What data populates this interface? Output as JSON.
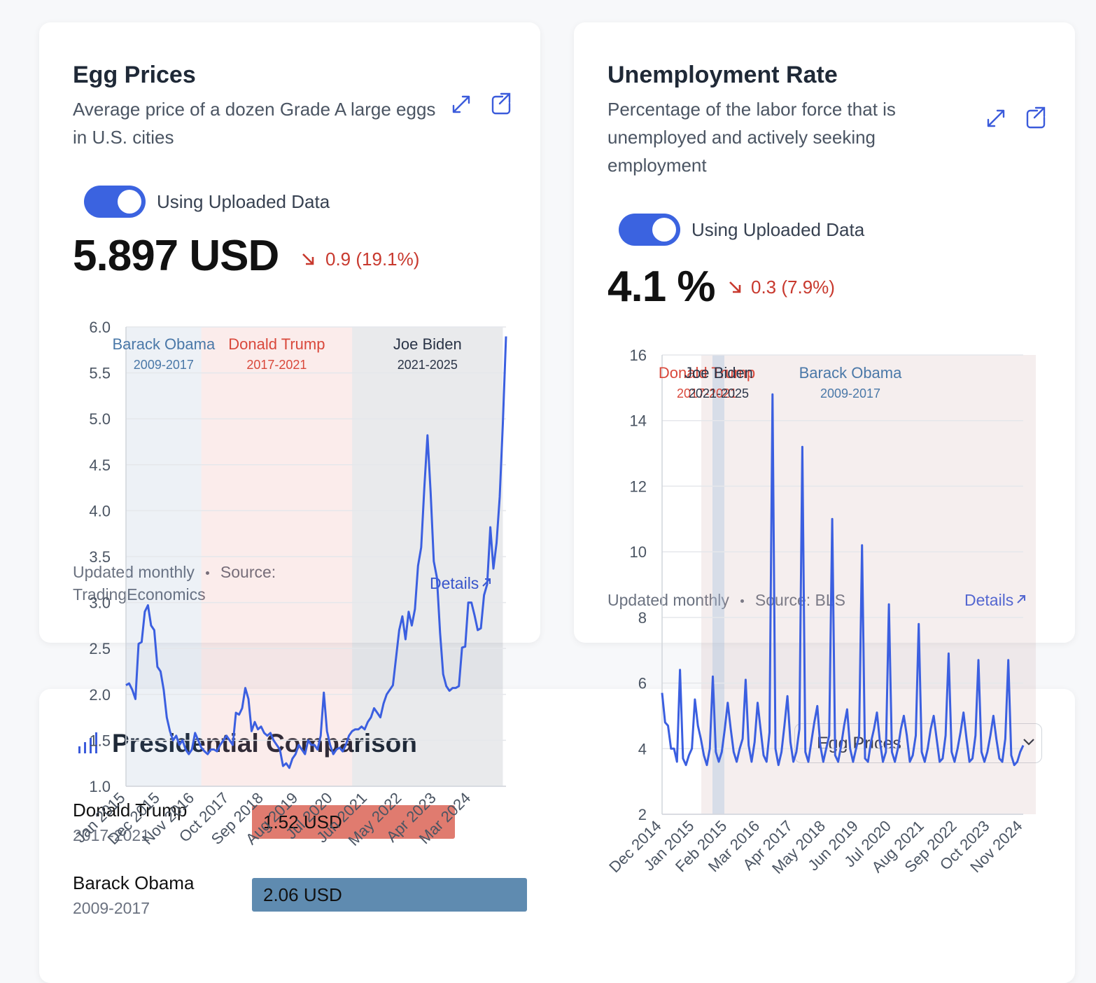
{
  "cards": [
    {
      "title": "Egg Prices",
      "description": "Average price of a dozen Grade A large eggs in U.S. cities",
      "toggle": "Using Uploaded Data",
      "current": "5.897 USD",
      "change": "0.9 (19.1%)",
      "updated": "Updated monthly",
      "source": "Source: TradingEconomics",
      "details": "Details"
    },
    {
      "title": "Unemployment Rate",
      "description": "Percentage of the labor force that is unemployed and actively seeking employment",
      "toggle": "Using Uploaded Data",
      "current": "4.1 %",
      "change": "0.3 (7.9%)",
      "updated": "Updated monthly",
      "source": "Source: BLS",
      "details": "Details"
    }
  ],
  "comparison": {
    "title": "Presidential Comparison",
    "selected": "Egg Prices"
  },
  "chart_data": [
    {
      "type": "line",
      "categories": [
        "Jan 2015",
        null,
        null,
        null,
        null,
        null,
        null,
        null,
        null,
        null,
        null,
        "Dec 2015",
        null,
        null,
        null,
        null,
        null,
        null,
        null,
        null,
        null,
        null,
        "Nov 2016",
        null,
        null,
        null,
        null,
        null,
        null,
        null,
        null,
        null,
        null,
        "Oct 2017",
        null,
        null,
        null,
        null,
        null,
        null,
        null,
        null,
        null,
        null,
        "Sep 2018",
        null,
        null,
        null,
        null,
        null,
        null,
        null,
        null,
        null,
        null,
        "Aug 2019",
        null,
        null,
        null,
        null,
        null,
        null,
        null,
        null,
        null,
        null,
        "Jul 2020",
        null,
        null,
        null,
        null,
        null,
        null,
        null,
        null,
        null,
        null,
        "Jun 2021",
        null,
        null,
        null,
        null,
        null,
        null,
        null,
        null,
        null,
        null,
        "May 2022",
        null,
        null,
        null,
        null,
        null,
        null,
        null,
        null,
        null,
        null,
        "Apr 2023",
        null,
        null,
        null,
        null,
        null,
        null,
        null,
        null,
        null,
        null,
        "Mar 2024",
        null,
        null,
        null,
        null,
        null,
        null,
        null,
        null,
        null,
        null,
        null
      ],
      "series": [
        {
          "color": "#3b5fe0",
          "values": [
            2.1,
            2.12,
            2.05,
            1.95,
            2.55,
            2.57,
            2.9,
            2.97,
            2.75,
            2.7,
            2.3,
            2.25,
            2.05,
            1.75,
            1.6,
            1.5,
            1.55,
            1.45,
            1.5,
            1.4,
            1.35,
            1.4,
            1.58,
            1.5,
            1.42,
            1.38,
            1.35,
            1.4,
            1.4,
            1.38,
            1.45,
            1.5,
            1.55,
            1.5,
            1.45,
            1.8,
            1.78,
            1.85,
            2.07,
            1.95,
            1.6,
            1.7,
            1.62,
            1.65,
            1.58,
            1.55,
            1.58,
            1.5,
            1.45,
            1.4,
            1.22,
            1.25,
            1.2,
            1.3,
            1.35,
            1.45,
            1.4,
            1.35,
            1.5,
            1.45,
            1.45,
            1.4,
            1.55,
            2.02,
            1.6,
            1.45,
            1.35,
            1.4,
            1.42,
            1.38,
            1.45,
            1.55,
            1.6,
            1.62,
            1.62,
            1.65,
            1.62,
            1.7,
            1.75,
            1.85,
            1.8,
            1.75,
            1.9,
            2.0,
            2.05,
            2.1,
            2.4,
            2.7,
            2.85,
            2.6,
            2.9,
            2.75,
            2.93,
            3.4,
            3.6,
            4.25,
            4.82,
            4.2,
            3.45,
            3.27,
            2.67,
            2.22,
            2.09,
            2.04,
            2.07,
            2.07,
            2.09,
            2.51,
            2.52,
            3.0,
            3.0,
            2.86,
            2.7,
            2.72,
            3.08,
            3.2,
            3.82,
            3.37,
            3.65,
            4.15,
            4.95,
            5.897
          ]
        }
      ],
      "ylim": [
        1,
        6
      ],
      "yticks": [
        {
          "value": 1,
          "label": "1.0"
        },
        {
          "value": 1.5,
          "label": "1.5"
        },
        {
          "value": 2,
          "label": "2.0"
        },
        {
          "value": 2.5,
          "label": "2.5"
        },
        {
          "value": 3,
          "label": "3.0"
        },
        {
          "value": 3.5,
          "label": "3.5"
        },
        {
          "value": 4,
          "label": "4.0"
        },
        {
          "value": 4.5,
          "label": "4.5"
        },
        {
          "value": 5,
          "label": "5.0"
        },
        {
          "value": 5.5,
          "label": "5.5"
        },
        {
          "value": 6,
          "label": "6.0"
        }
      ],
      "grid": true,
      "annotations": [
        {
          "name": "Donald Trump",
          "years": "2017-2021",
          "color": "#d9483b"
        },
        {
          "name": "Barack Obama",
          "years": "2009-2017",
          "color": "#4a78a8"
        },
        {
          "name": "Joe Biden",
          "years": "2021-2025",
          "color": "#2a3447"
        }
      ]
    },
    {
      "type": "line",
      "categories": [
        "Dec 2014",
        null,
        null,
        null,
        null,
        null,
        null,
        null,
        null,
        null,
        null,
        "Jan 2015",
        null,
        null,
        null,
        null,
        null,
        null,
        null,
        null,
        null,
        null,
        "Feb 2015",
        null,
        null,
        null,
        null,
        null,
        null,
        null,
        null,
        null,
        null,
        "Mar 2016",
        null,
        null,
        null,
        null,
        null,
        null,
        null,
        null,
        null,
        null,
        "Apr 2017",
        null,
        null,
        null,
        null,
        null,
        null,
        null,
        null,
        null,
        null,
        "May 2018",
        null,
        null,
        null,
        null,
        null,
        null,
        null,
        null,
        null,
        null,
        "Jun 2019",
        null,
        null,
        null,
        null,
        null,
        null,
        null,
        null,
        null,
        null,
        "Jul 2020",
        null,
        null,
        null,
        null,
        null,
        null,
        null,
        null,
        null,
        null,
        "Aug 2021",
        null,
        null,
        null,
        null,
        null,
        null,
        null,
        null,
        null,
        null,
        "Sep 2022",
        null,
        null,
        null,
        null,
        null,
        null,
        null,
        null,
        null,
        null,
        "Oct 2023",
        null,
        null,
        null,
        null,
        null,
        null,
        null,
        null,
        null,
        null,
        "Nov 2024"
      ],
      "series": [
        {
          "color": "#3b5fe0",
          "values": [
            5.7,
            4.8,
            4.7,
            4.0,
            4.0,
            3.6,
            6.4,
            3.7,
            3.5,
            3.8,
            4.0,
            5.5,
            4.7,
            4.3,
            3.8,
            3.5,
            4.0,
            6.2,
            3.9,
            3.6,
            3.9,
            4.6,
            5.4,
            4.6,
            3.9,
            3.6,
            4.0,
            4.3,
            6.1,
            4.1,
            3.6,
            4.2,
            5.4,
            4.6,
            3.8,
            3.6,
            4.5,
            14.8,
            4.0,
            3.5,
            3.9,
            4.7,
            5.6,
            4.2,
            3.6,
            3.9,
            4.6,
            13.2,
            3.9,
            3.6,
            4.2,
            4.8,
            5.3,
            4.1,
            3.6,
            4.0,
            4.4,
            11.0,
            3.8,
            3.6,
            4.1,
            4.7,
            5.2,
            4.0,
            3.6,
            4.0,
            4.4,
            10.2,
            3.7,
            3.6,
            4.2,
            4.6,
            5.1,
            4.2,
            3.6,
            3.9,
            8.4,
            3.9,
            3.6,
            4.0,
            4.6,
            5.0,
            4.4,
            3.6,
            3.8,
            4.4,
            7.8,
            3.9,
            3.6,
            4.0,
            4.6,
            5.0,
            4.3,
            3.6,
            3.7,
            4.4,
            6.9,
            3.9,
            3.6,
            4.0,
            4.5,
            5.1,
            4.3,
            3.6,
            3.7,
            4.4,
            6.7,
            3.9,
            3.6,
            3.9,
            4.4,
            5.0,
            4.3,
            3.7,
            3.6,
            4.3,
            6.7,
            3.8,
            3.5,
            3.6,
            3.9,
            4.1
          ]
        }
      ],
      "ylim": [
        2,
        16
      ],
      "yticks": [
        2,
        4,
        6,
        8,
        10,
        12,
        14,
        16
      ],
      "grid": true,
      "annotations": [
        {
          "name": "Donald Trump",
          "years": "2017-2021",
          "color": "#d9483b"
        },
        {
          "name": "Joe Biden",
          "years": "2021-2025",
          "color": "#2a3447"
        },
        {
          "name": "Barack Obama",
          "years": "2009-2017",
          "color": "#4a78a8"
        }
      ]
    },
    {
      "type": "hbar",
      "categories": [
        "Donald Trump",
        "Barack Obama"
      ],
      "subtitles": [
        "2017-2021",
        "2009-2017"
      ],
      "values": [
        1.52,
        2.06
      ],
      "value_labels": [
        "1.52 USD",
        "2.06 USD"
      ],
      "colors": [
        "#e07b6f",
        "#5f8bb0"
      ]
    }
  ]
}
